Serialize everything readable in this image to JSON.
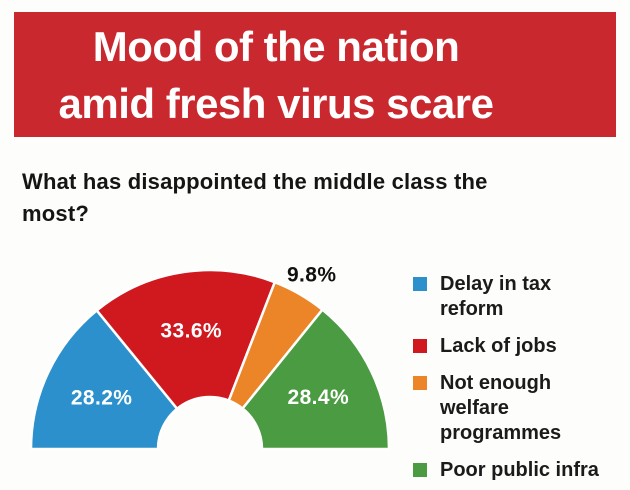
{
  "header": {
    "title": "Mood of the nation\namid fresh virus scare",
    "bg_color": "#c9282e",
    "text_color": "#ffffff"
  },
  "question": "What has disappointed the middle class the\nmost?",
  "chart_data": {
    "type": "pie",
    "subtype": "half-donut",
    "title": "What has disappointed the middle class the most?",
    "unit": "%",
    "start_angle_deg": 180,
    "end_angle_deg": 0,
    "inner_radius_ratio": 0.29,
    "legend_position": "right",
    "segments": [
      {
        "label": "Delay in tax reform",
        "value": 28.2,
        "color": "#2b90cc",
        "label_placement": "inside",
        "label_color": "#ffffff"
      },
      {
        "label": "Lack of jobs",
        "value": 33.6,
        "color": "#d0181f",
        "label_placement": "inside",
        "label_color": "#ffffff"
      },
      {
        "label": "Not enough welfare programmes",
        "value": 9.8,
        "color": "#ec8428",
        "label_placement": "outside",
        "label_color": "#111111"
      },
      {
        "label": "Poor public infra",
        "value": 28.4,
        "color": "#4a9b41",
        "label_placement": "inside",
        "label_color": "#ffffff"
      }
    ],
    "legend": [
      {
        "label": "Delay in tax\nreform",
        "color": "#2b90cc"
      },
      {
        "label": "Lack of jobs",
        "color": "#d0181f"
      },
      {
        "label": "Not enough\nwelfare\nprogrammes",
        "color": "#ec8428"
      },
      {
        "label": "Poor public infra",
        "color": "#4a9b41"
      }
    ]
  }
}
